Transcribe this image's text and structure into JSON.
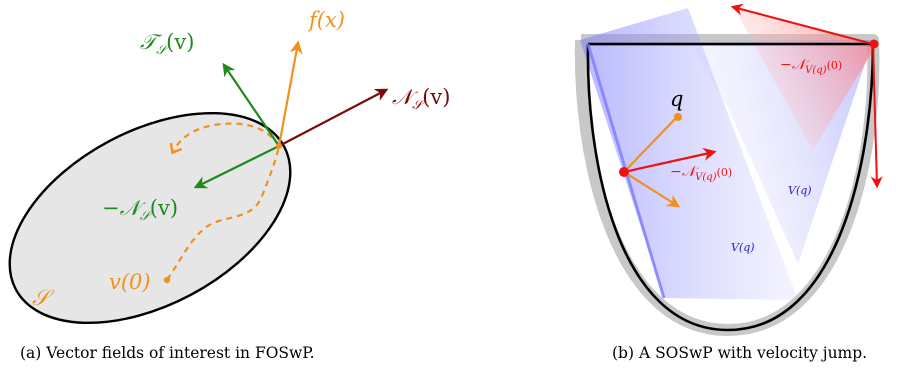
{
  "panel_a": {
    "caption": "(a) Vector fields of interest in FOSwP.",
    "labels": {
      "tangent": "𝒯",
      "tangent_sub": "𝒮",
      "tangent_arg": "(v)",
      "f": "f(x)",
      "normal": "𝒩",
      "normal_sub": "𝒮",
      "normal_arg": "(v)",
      "neg_normal_prefix": "−",
      "neg_normal": "𝒩",
      "neg_normal_sub": "𝒮",
      "neg_normal_arg": "(v)",
      "v0": "v(0)",
      "set": "𝒮"
    },
    "colors": {
      "set_fill": "#e6e6e6",
      "tangent": "#1e8a1e",
      "f": "#f0901e",
      "normal": "#7a0a0a",
      "trajectory": "#f0901e"
    }
  },
  "panel_b": {
    "caption": "(b) A SOSwP with velocity jump.",
    "labels": {
      "q": "q",
      "neg_n_top_prefix": "−",
      "neg_n_top": "𝒩",
      "neg_n_top_sub": "V(q)",
      "neg_n_top_arg": "(0)",
      "neg_n_mid_prefix": "−",
      "neg_n_mid": "𝒩",
      "neg_n_mid_sub": "V(q)",
      "neg_n_mid_arg": "(0)",
      "vq_right": "V(q)",
      "vq_left": "V(q)"
    },
    "colors": {
      "blue_region": "#8080ff",
      "red_region": "#ff8080",
      "red_arrow": "#ee1111",
      "orange_arrow": "#f0901e",
      "curve": "#000000",
      "curve_halo": "#c0c0c0",
      "label_blue": "#2222cc"
    }
  }
}
